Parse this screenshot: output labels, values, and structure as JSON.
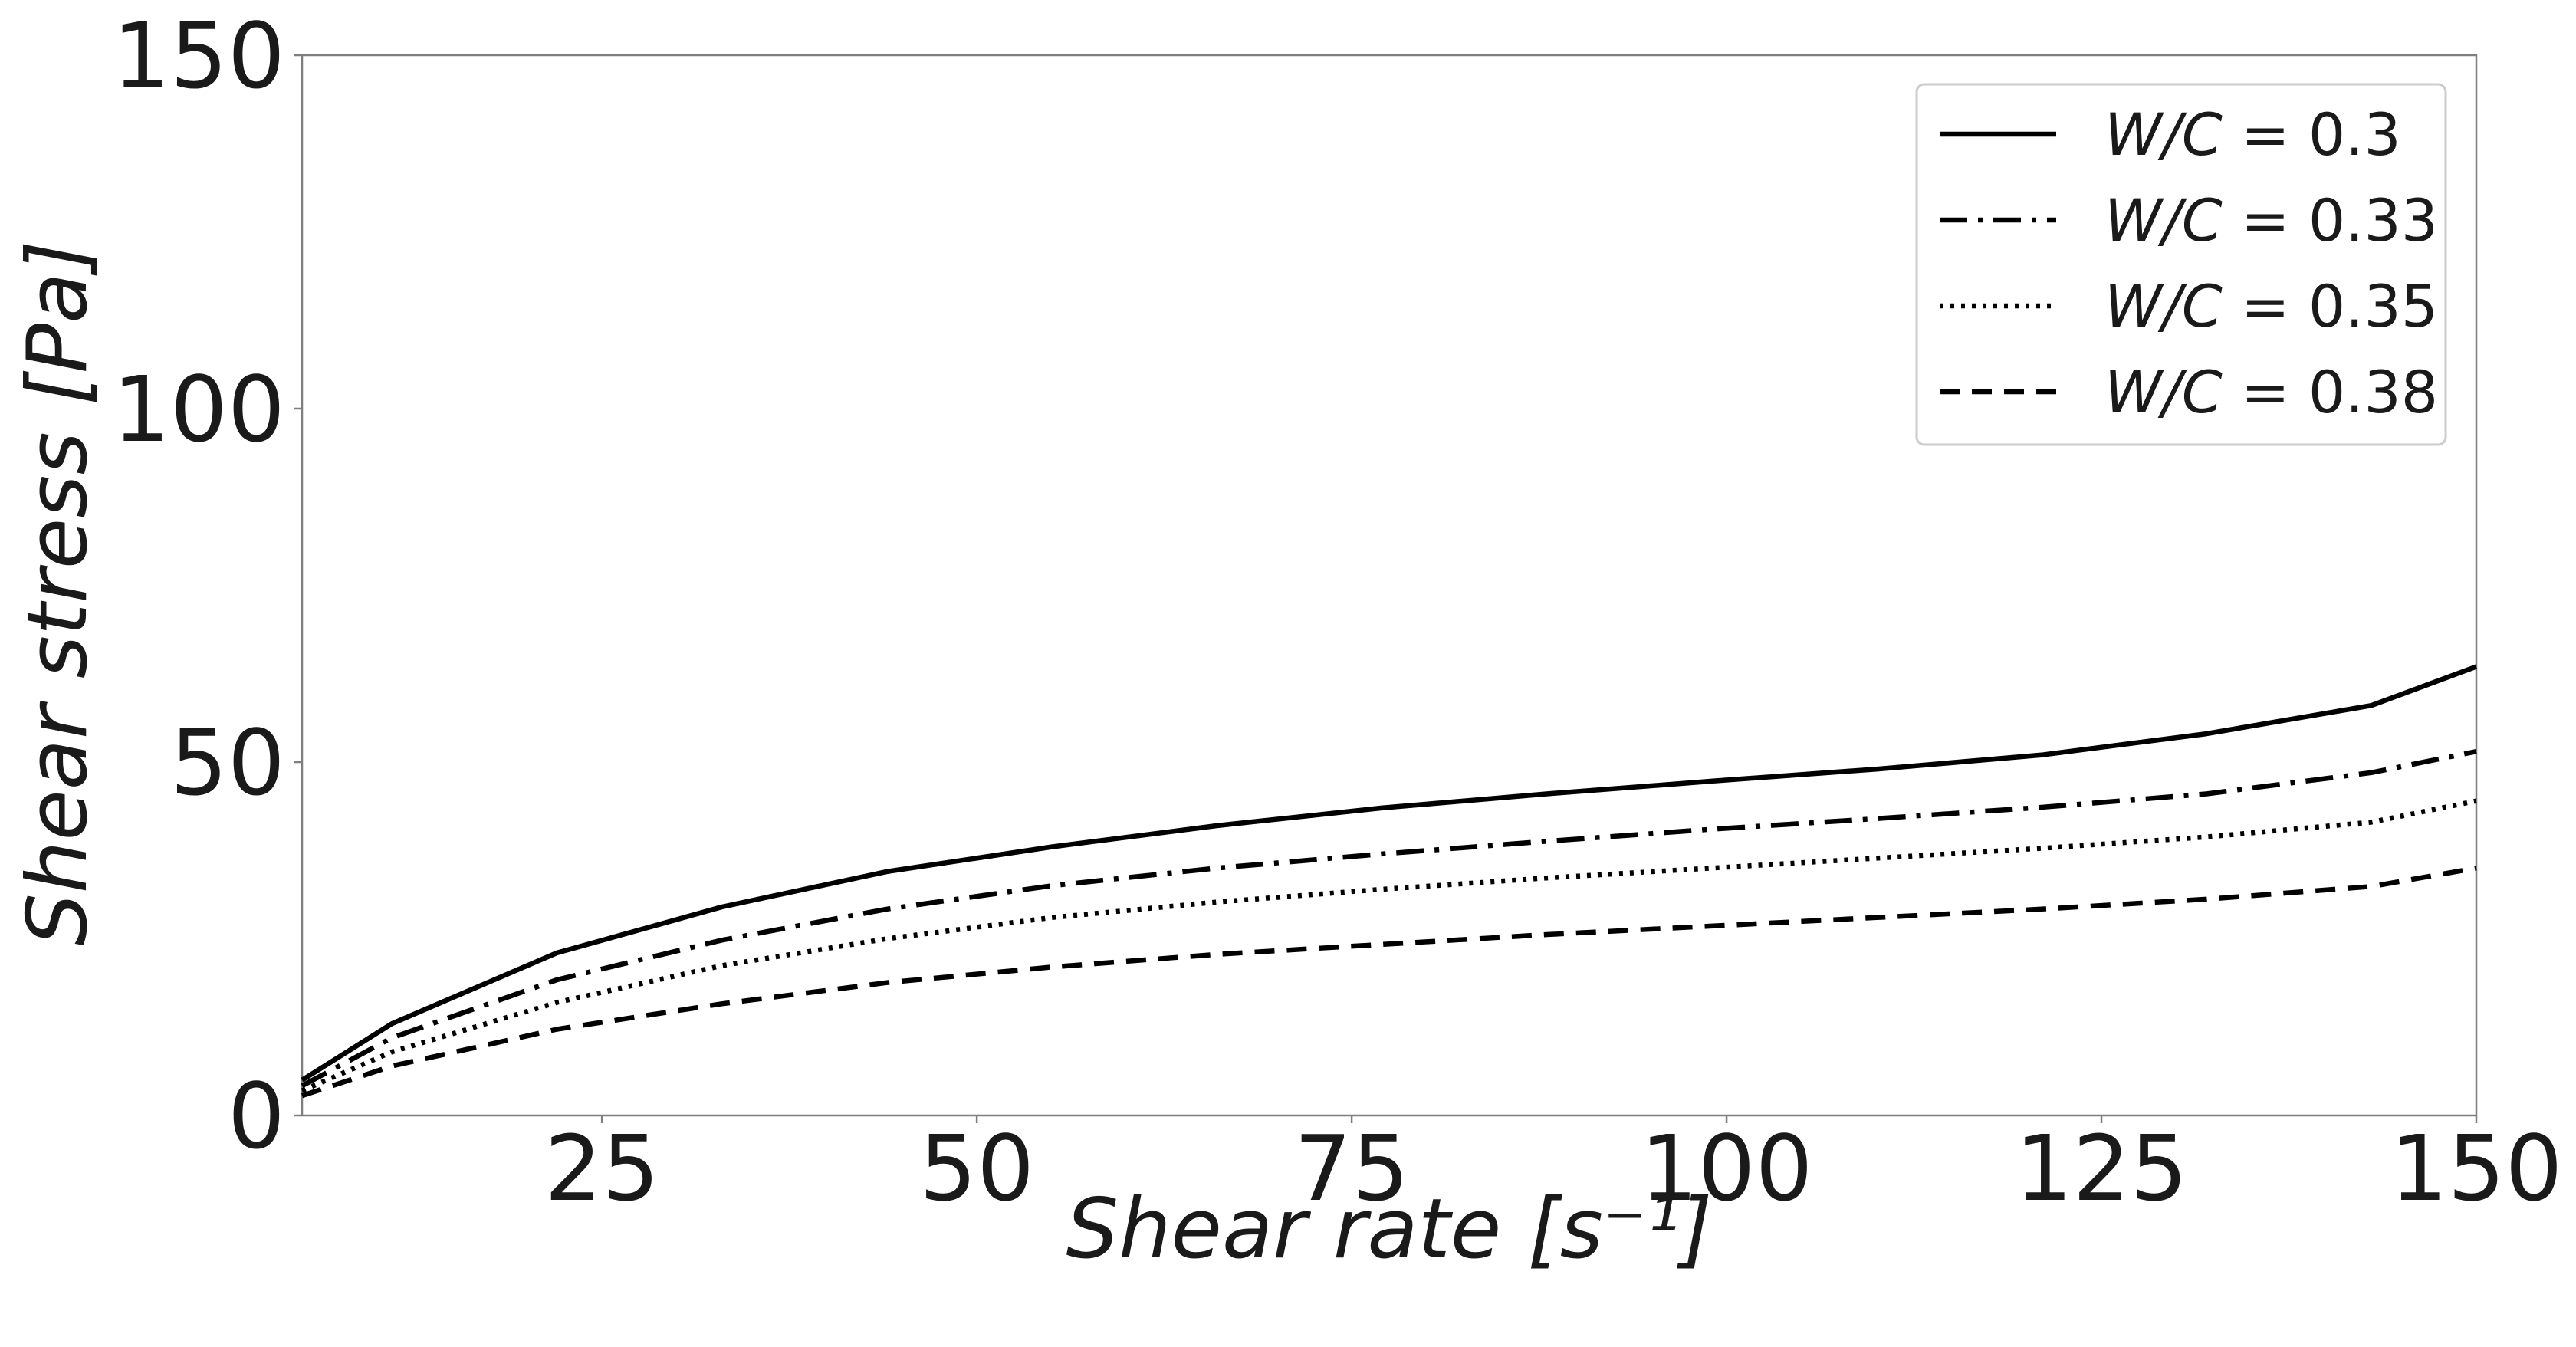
{
  "chart_data": {
    "type": "line",
    "xlabel": "Shear rate [s⁻¹]",
    "ylabel": "Shear stress [Pa]",
    "xlim": [
      5,
      150
    ],
    "ylim": [
      0,
      150
    ],
    "xticks": [
      25,
      50,
      75,
      100,
      125,
      150
    ],
    "yticks": [
      0,
      50,
      100,
      150
    ],
    "grid": false,
    "legend_position": "top-right",
    "x": [
      5,
      11,
      22,
      33,
      44,
      55,
      66,
      77,
      88,
      99,
      110,
      121,
      132,
      143,
      150
    ],
    "series": [
      {
        "name": "W/C = 0.3",
        "style": "solid",
        "values": [
          5,
          13,
          23,
          29.5,
          34.5,
          38,
          41,
          43.5,
          45.5,
          47.3,
          49,
          51,
          54,
          58,
          63.5
        ]
      },
      {
        "name": "W/C = 0.33",
        "style": "dashdot",
        "values": [
          4.2,
          11,
          19.2,
          24.8,
          29.2,
          32.5,
          35,
          37,
          38.8,
          40.5,
          42,
          43.6,
          45.5,
          48.5,
          51.5
        ]
      },
      {
        "name": "W/C = 0.35",
        "style": "dotted",
        "values": [
          3.5,
          9,
          16,
          21.2,
          25,
          28,
          30.2,
          32,
          33.6,
          35,
          36.4,
          37.8,
          39.4,
          41.5,
          44.5
        ]
      },
      {
        "name": "W/C = 0.38",
        "style": "dashed",
        "values": [
          2.8,
          7,
          12.2,
          15.8,
          18.8,
          21,
          22.8,
          24.2,
          25.6,
          26.8,
          28,
          29.2,
          30.6,
          32.4,
          35
        ]
      }
    ],
    "legend_labels": [
      {
        "prefix": "W/C",
        "value": "0.3"
      },
      {
        "prefix": "W/C",
        "value": "0.33"
      },
      {
        "prefix": "W/C",
        "value": "0.35"
      },
      {
        "prefix": "W/C",
        "value": "0.38"
      }
    ]
  }
}
